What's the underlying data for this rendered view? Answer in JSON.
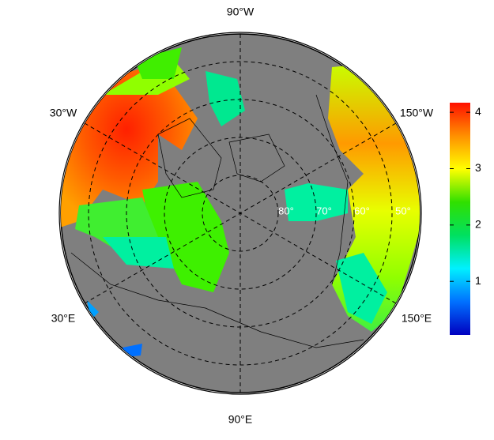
{
  "map": {
    "meridian_labels": [
      "90°W",
      "30°W",
      "150°W",
      "30°E",
      "150°E",
      "90°E"
    ],
    "parallel_labels": [
      "80°",
      "70°",
      "60°",
      "50°"
    ],
    "colorbar": {
      "lim": [
        0.05,
        4.17
      ],
      "ticks": [
        1,
        2,
        3,
        4
      ],
      "colors": [
        "#0000c0",
        "#0070ff",
        "#00f0ff",
        "#00e060",
        "#30e000",
        "#ffff00",
        "#ff9000",
        "#ff1000"
      ]
    }
  }
}
